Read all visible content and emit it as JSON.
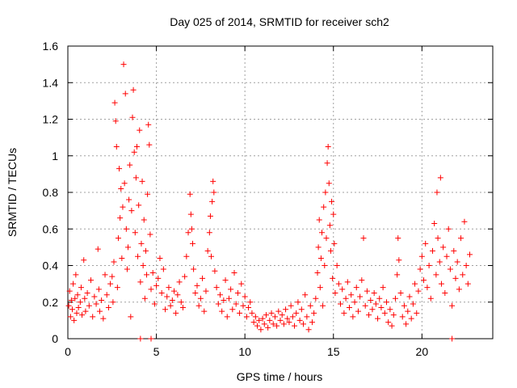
{
  "chart_data": {
    "type": "scatter",
    "title": "Day 025 of 2014, SRMTID for receiver sch2",
    "xlabel": "GPS time / hours",
    "ylabel": "SRMTID / TECUs",
    "xlim": [
      0,
      24
    ],
    "ylim": [
      0,
      1.6
    ],
    "grid": true,
    "marker": "+",
    "color": "#ff0000",
    "x_ticks": [
      0,
      5,
      10,
      15,
      20
    ],
    "x_tick_labels": [
      "0",
      "5",
      "10",
      "15",
      "20"
    ],
    "y_ticks": [
      0,
      0.2,
      0.4,
      0.6,
      0.8,
      1.0,
      1.2,
      1.4,
      1.6
    ],
    "y_tick_labels": [
      "0",
      "0.2",
      "0.4",
      "0.6",
      "0.8",
      "1",
      "1.2",
      "1.4",
      "1.6"
    ],
    "series": [
      {
        "name": "sch2",
        "points": [
          [
            0.05,
            0.18
          ],
          [
            0.1,
            0.26
          ],
          [
            0.15,
            0.12
          ],
          [
            0.2,
            0.21
          ],
          [
            0.25,
            0.16
          ],
          [
            0.3,
            0.3
          ],
          [
            0.35,
            0.1
          ],
          [
            0.4,
            0.22
          ],
          [
            0.45,
            0.35
          ],
          [
            0.5,
            0.14
          ],
          [
            0.55,
            0.24
          ],
          [
            0.6,
            0.17
          ],
          [
            0.7,
            0.2
          ],
          [
            0.75,
            0.28
          ],
          [
            0.8,
            0.13
          ],
          [
            0.9,
            0.43
          ],
          [
            0.95,
            0.22
          ],
          [
            1.0,
            0.15
          ],
          [
            1.1,
            0.25
          ],
          [
            1.2,
            0.18
          ],
          [
            1.3,
            0.32
          ],
          [
            1.4,
            0.12
          ],
          [
            1.5,
            0.23
          ],
          [
            1.6,
            0.19
          ],
          [
            1.7,
            0.49
          ],
          [
            1.75,
            0.27
          ],
          [
            1.8,
            0.15
          ],
          [
            1.9,
            0.21
          ],
          [
            2.0,
            0.11
          ],
          [
            2.1,
            0.35
          ],
          [
            2.2,
            0.24
          ],
          [
            2.3,
            0.17
          ],
          [
            2.4,
            0.3
          ],
          [
            2.5,
            0.34
          ],
          [
            2.55,
            0.2
          ],
          [
            2.6,
            0.42
          ],
          [
            2.65,
            1.29
          ],
          [
            2.7,
            1.19
          ],
          [
            2.75,
            1.05
          ],
          [
            2.8,
            0.28
          ],
          [
            2.85,
            0.55
          ],
          [
            2.9,
            0.93
          ],
          [
            2.95,
            0.66
          ],
          [
            3.0,
            0.82
          ],
          [
            3.05,
            0.44
          ],
          [
            3.1,
            0.72
          ],
          [
            3.15,
            1.5
          ],
          [
            3.2,
            0.85
          ],
          [
            3.25,
            1.34
          ],
          [
            3.3,
            0.6
          ],
          [
            3.35,
            0.38
          ],
          [
            3.4,
            0.5
          ],
          [
            3.45,
            0.76
          ],
          [
            3.5,
            0.95
          ],
          [
            3.55,
            0.12
          ],
          [
            3.6,
            0.7
          ],
          [
            3.65,
            1.21
          ],
          [
            3.7,
            1.36
          ],
          [
            3.75,
            1.02
          ],
          [
            3.8,
            0.58
          ],
          [
            3.85,
            0.88
          ],
          [
            3.9,
            1.05
          ],
          [
            3.95,
            0.45
          ],
          [
            4.0,
            0.73
          ],
          [
            4.05,
            1.14
          ],
          [
            4.1,
            0.31
          ],
          [
            4.15,
            0.52
          ],
          [
            4.2,
            0.86
          ],
          [
            4.25,
            0.4
          ],
          [
            4.3,
            0.65
          ],
          [
            4.35,
            0.22
          ],
          [
            4.4,
            0.48
          ],
          [
            4.45,
            0.35
          ],
          [
            4.5,
            0.79
          ],
          [
            4.55,
            1.17
          ],
          [
            4.6,
            1.06
          ],
          [
            4.65,
            0.57
          ],
          [
            4.7,
            0.27
          ],
          [
            4.8,
            0.36
          ],
          [
            4.9,
            0.19
          ],
          [
            5.0,
            0.29
          ],
          [
            5.1,
            0.33
          ],
          [
            5.2,
            0.44
          ],
          [
            5.3,
            0.25
          ],
          [
            5.4,
            0.38
          ],
          [
            5.5,
            0.16
          ],
          [
            5.6,
            0.23
          ],
          [
            5.7,
            0.28
          ],
          [
            5.8,
            0.18
          ],
          [
            5.9,
            0.21
          ],
          [
            6.0,
            0.26
          ],
          [
            6.1,
            0.14
          ],
          [
            6.2,
            0.24
          ],
          [
            6.3,
            0.31
          ],
          [
            6.4,
            0.2
          ],
          [
            6.5,
            0.17
          ],
          [
            6.6,
            0.34
          ],
          [
            6.7,
            0.45
          ],
          [
            6.8,
            0.58
          ],
          [
            6.9,
            0.79
          ],
          [
            6.95,
            0.68
          ],
          [
            7.0,
            0.6
          ],
          [
            7.05,
            0.52
          ],
          [
            7.1,
            0.38
          ],
          [
            7.2,
            0.25
          ],
          [
            7.3,
            0.29
          ],
          [
            7.4,
            0.18
          ],
          [
            7.5,
            0.22
          ],
          [
            7.6,
            0.33
          ],
          [
            7.7,
            0.15
          ],
          [
            7.8,
            0.26
          ],
          [
            7.9,
            0.48
          ],
          [
            8.0,
            0.58
          ],
          [
            8.05,
            0.67
          ],
          [
            8.1,
            0.45
          ],
          [
            8.15,
            0.75
          ],
          [
            8.2,
            0.86
          ],
          [
            8.25,
            0.8
          ],
          [
            8.3,
            0.37
          ],
          [
            8.4,
            0.28
          ],
          [
            8.5,
            0.19
          ],
          [
            8.6,
            0.24
          ],
          [
            8.7,
            0.15
          ],
          [
            8.8,
            0.21
          ],
          [
            8.9,
            0.32
          ],
          [
            9.0,
            0.12
          ],
          [
            9.1,
            0.22
          ],
          [
            9.2,
            0.27
          ],
          [
            9.3,
            0.16
          ],
          [
            9.4,
            0.36
          ],
          [
            9.5,
            0.19
          ],
          [
            9.6,
            0.25
          ],
          [
            9.7,
            0.14
          ],
          [
            9.8,
            0.3
          ],
          [
            9.9,
            0.18
          ],
          [
            10.0,
            0.23
          ],
          [
            10.1,
            0.12
          ],
          [
            10.2,
            0.17
          ],
          [
            10.3,
            0.2
          ],
          [
            10.4,
            0.14
          ],
          [
            10.5,
            0.09
          ],
          [
            10.6,
            0.12
          ],
          [
            10.7,
            0.07
          ],
          [
            10.8,
            0.1
          ],
          [
            10.9,
            0.05
          ],
          [
            11.0,
            0.11
          ],
          [
            11.1,
            0.08
          ],
          [
            11.2,
            0.13
          ],
          [
            11.3,
            0.06
          ],
          [
            11.4,
            0.1
          ],
          [
            11.5,
            0.14
          ],
          [
            11.6,
            0.08
          ],
          [
            11.7,
            0.12
          ],
          [
            11.8,
            0.07
          ],
          [
            11.9,
            0.15
          ],
          [
            12.0,
            0.1
          ],
          [
            12.1,
            0.13
          ],
          [
            12.2,
            0.08
          ],
          [
            12.3,
            0.16
          ],
          [
            12.4,
            0.11
          ],
          [
            12.5,
            0.09
          ],
          [
            12.6,
            0.18
          ],
          [
            12.7,
            0.12
          ],
          [
            12.8,
            0.07
          ],
          [
            12.9,
            0.14
          ],
          [
            13.0,
            0.2
          ],
          [
            13.1,
            0.1
          ],
          [
            13.2,
            0.16
          ],
          [
            13.3,
            0.08
          ],
          [
            13.4,
            0.24
          ],
          [
            13.5,
            0.12
          ],
          [
            13.6,
            0.05
          ],
          [
            13.7,
            0.18
          ],
          [
            13.8,
            0.09
          ],
          [
            13.9,
            0.14
          ],
          [
            14.0,
            0.22
          ],
          [
            14.1,
            0.36
          ],
          [
            14.15,
            0.5
          ],
          [
            14.2,
            0.65
          ],
          [
            14.25,
            0.28
          ],
          [
            14.3,
            0.44
          ],
          [
            14.35,
            0.58
          ],
          [
            14.4,
            0.18
          ],
          [
            14.45,
            0.72
          ],
          [
            14.5,
            0.4
          ],
          [
            14.55,
            0.8
          ],
          [
            14.6,
            0.55
          ],
          [
            14.65,
            0.96
          ],
          [
            14.7,
            1.05
          ],
          [
            14.75,
            0.85
          ],
          [
            14.8,
            0.62
          ],
          [
            14.85,
            0.48
          ],
          [
            14.9,
            0.75
          ],
          [
            14.95,
            0.33
          ],
          [
            15.0,
            0.68
          ],
          [
            15.05,
            0.52
          ],
          [
            15.1,
            0.25
          ],
          [
            15.2,
            0.4
          ],
          [
            15.3,
            0.3
          ],
          [
            15.4,
            0.19
          ],
          [
            15.5,
            0.27
          ],
          [
            15.6,
            0.14
          ],
          [
            15.7,
            0.22
          ],
          [
            15.8,
            0.31
          ],
          [
            15.9,
            0.17
          ],
          [
            16.0,
            0.24
          ],
          [
            16.1,
            0.12
          ],
          [
            16.2,
            0.2
          ],
          [
            16.3,
            0.28
          ],
          [
            16.4,
            0.15
          ],
          [
            16.5,
            0.23
          ],
          [
            16.6,
            0.32
          ],
          [
            16.7,
            0.55
          ],
          [
            16.8,
            0.18
          ],
          [
            16.9,
            0.26
          ],
          [
            17.0,
            0.13
          ],
          [
            17.1,
            0.21
          ],
          [
            17.2,
            0.16
          ],
          [
            17.3,
            0.25
          ],
          [
            17.4,
            0.19
          ],
          [
            17.5,
            0.11
          ],
          [
            17.6,
            0.22
          ],
          [
            17.7,
            0.17
          ],
          [
            17.8,
            0.28
          ],
          [
            17.9,
            0.14
          ],
          [
            18.0,
            0.2
          ],
          [
            18.1,
            0.09
          ],
          [
            18.2,
            0.16
          ],
          [
            18.3,
            0.07
          ],
          [
            18.4,
            0.13
          ],
          [
            18.5,
            0.22
          ],
          [
            18.6,
            0.35
          ],
          [
            18.65,
            0.55
          ],
          [
            18.7,
            0.43
          ],
          [
            18.8,
            0.25
          ],
          [
            18.9,
            0.12
          ],
          [
            19.0,
            0.18
          ],
          [
            19.1,
            0.08
          ],
          [
            19.2,
            0.15
          ],
          [
            19.3,
            0.23
          ],
          [
            19.4,
            0.11
          ],
          [
            19.5,
            0.19
          ],
          [
            19.6,
            0.3
          ],
          [
            19.7,
            0.14
          ],
          [
            19.8,
            0.26
          ],
          [
            19.9,
            0.38
          ],
          [
            20.0,
            0.45
          ],
          [
            20.1,
            0.32
          ],
          [
            20.2,
            0.52
          ],
          [
            20.3,
            0.28
          ],
          [
            20.4,
            0.4
          ],
          [
            20.5,
            0.22
          ],
          [
            20.6,
            0.48
          ],
          [
            20.7,
            0.63
          ],
          [
            20.8,
            0.35
          ],
          [
            20.85,
            0.8
          ],
          [
            20.9,
            0.55
          ],
          [
            21.0,
            0.42
          ],
          [
            21.05,
            0.88
          ],
          [
            21.1,
            0.3
          ],
          [
            21.2,
            0.5
          ],
          [
            21.3,
            0.25
          ],
          [
            21.4,
            0.45
          ],
          [
            21.5,
            0.6
          ],
          [
            21.6,
            0.38
          ],
          [
            21.7,
            0.18
          ],
          [
            21.8,
            0.48
          ],
          [
            21.9,
            0.33
          ],
          [
            22.0,
            0.42
          ],
          [
            22.1,
            0.27
          ],
          [
            22.2,
            0.55
          ],
          [
            22.3,
            0.35
          ],
          [
            22.4,
            0.64
          ],
          [
            22.5,
            0.4
          ],
          [
            22.6,
            0.3
          ],
          [
            22.7,
            0.46
          ],
          [
            4.1,
            0.0
          ],
          [
            4.7,
            0.0
          ],
          [
            21.7,
            0.0
          ]
        ]
      }
    ]
  }
}
